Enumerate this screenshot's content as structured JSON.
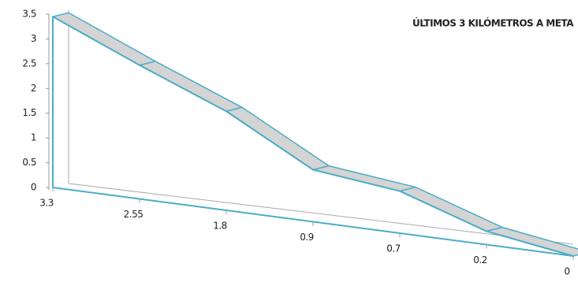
{
  "chart_data": {
    "type": "line3d",
    "title": "ÚLTIMOS 3 KILÓMETROS A META",
    "categories": [
      "3.3",
      "2.55",
      "1.8",
      "0.9",
      "0.7",
      "0.2",
      "0"
    ],
    "values": [
      3.45,
      2.7,
      2.0,
      1.05,
      0.85,
      0.27,
      0
    ],
    "color": "#d4d4d4",
    "line_color": "#4bacc6",
    "ylim": [
      0,
      3.5
    ],
    "yticks": [
      0,
      0.5,
      1,
      1.5,
      2,
      2.5,
      3,
      3.5
    ]
  }
}
